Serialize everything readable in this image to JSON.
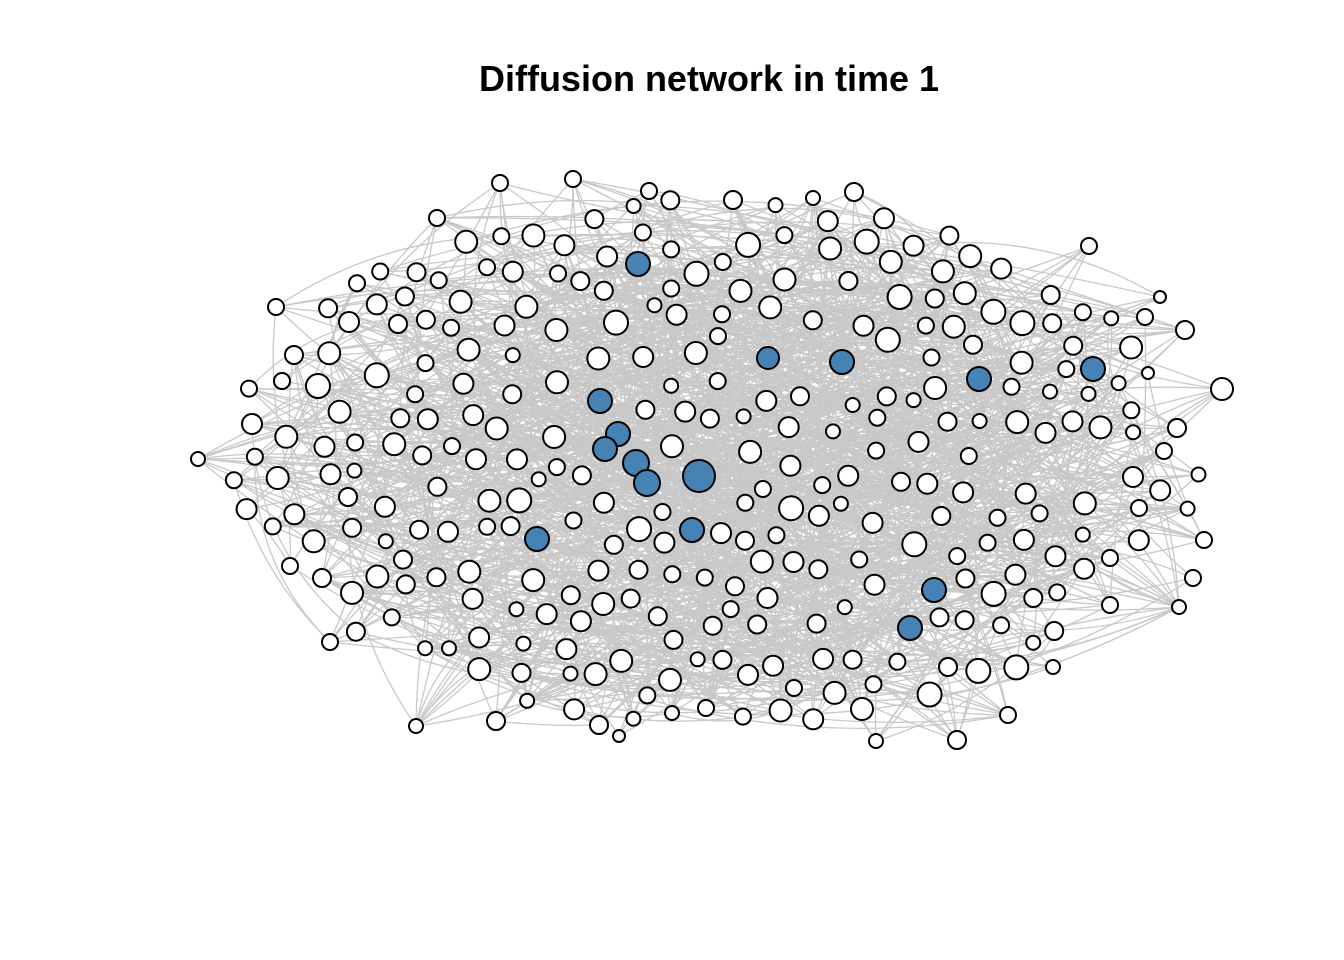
{
  "title": "Diffusion network in time 1",
  "colors": {
    "adopter": "#4682b4",
    "non_adopter": "#ffffff",
    "edge": "#c8c8c8",
    "outline": "#000000"
  },
  "network": {
    "time": 1,
    "node_count": 327,
    "adopter_count": 15
  }
}
